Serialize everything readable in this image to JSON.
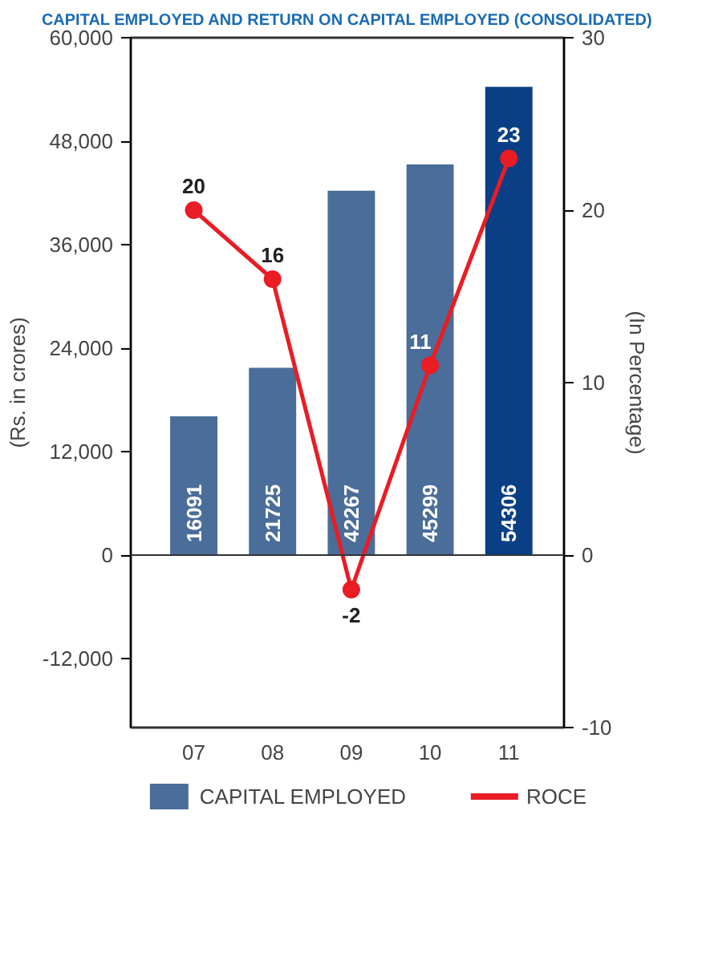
{
  "chart_data": {
    "type": "bar",
    "title": "CAPITAL EMPLOYED AND RETURN ON CAPITAL EMPLOYED (CONSOLIDATED)",
    "categories": [
      "07",
      "08",
      "09",
      "10",
      "11"
    ],
    "ylabel": "(Rs. in crores)",
    "y2label": "(In Percentage)",
    "series": [
      {
        "name": "CAPITAL EMPLOYED",
        "type": "bar",
        "color": "#4a6d99",
        "colors": [
          "#4a6d99",
          "#4a6d99",
          "#4a6d99",
          "#4a6d99",
          "#0a3f85"
        ],
        "values": [
          16091,
          21725,
          42267,
          45299,
          54306
        ]
      },
      {
        "name": "ROCE",
        "type": "line",
        "axis": "y2",
        "color": "#ea1c24",
        "marker": "circle",
        "values": [
          20,
          16,
          -2,
          11,
          23
        ]
      }
    ],
    "ylim": [
      -20000,
      60000
    ],
    "yticks": [
      {
        "value": -12000,
        "label": "-12,000"
      },
      {
        "value": 0,
        "label": "0"
      },
      {
        "value": 12000,
        "label": "12,000"
      },
      {
        "value": 24000,
        "label": "24,000"
      },
      {
        "value": 36000,
        "label": "36,000"
      },
      {
        "value": 48000,
        "label": "48,000"
      },
      {
        "value": 60000,
        "label": "60,000"
      }
    ],
    "y2lim": [
      -10,
      30
    ],
    "y2ticks": [
      -10,
      0,
      10,
      20,
      30
    ],
    "ref_lines": [
      {
        "axis": "y",
        "value": 0,
        "color": "#333333"
      }
    ],
    "data_labels": true,
    "grid": false,
    "legend": "bottom"
  }
}
